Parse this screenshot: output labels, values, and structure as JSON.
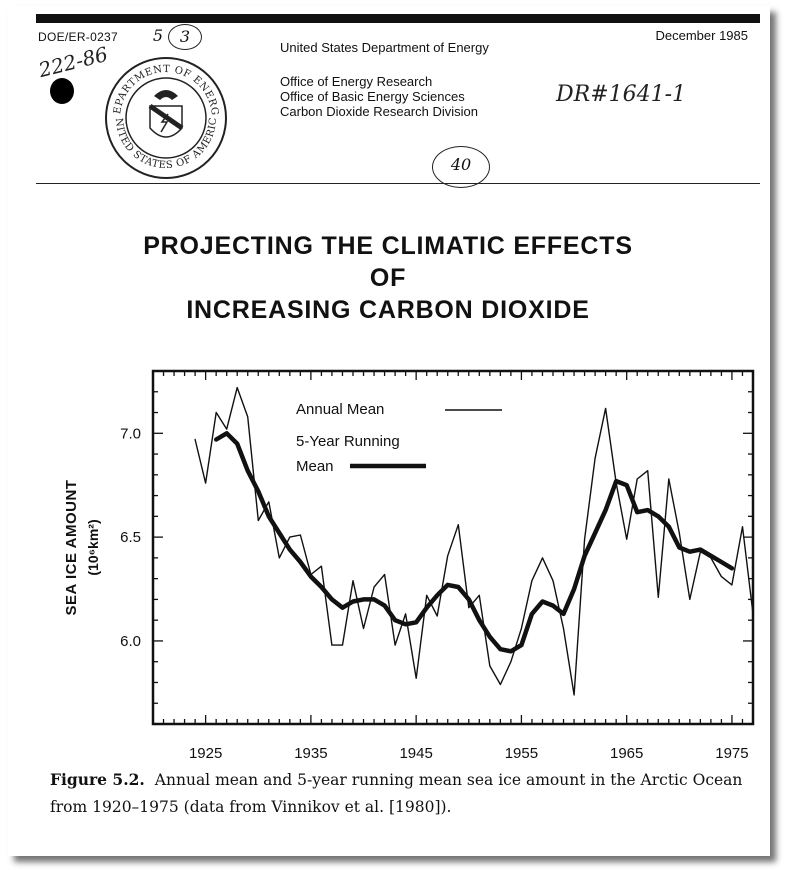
{
  "header": {
    "doc_number": "DOE/ER-0237",
    "handwritten_number": "222-86",
    "handwritten_mark": "5",
    "handwritten_circled": "3",
    "date": "December 1985",
    "department": "United States Department of Energy",
    "offices": [
      "Office of Energy Research",
      "Office of Basic Energy Sciences",
      "Carbon Dioxide Research Division"
    ],
    "handwritten_ref": "DR#1641-1",
    "handwritten_page": "40",
    "seal_text_top": "DEPARTMENT OF ENERGY",
    "seal_text_bottom": "UNITED STATES OF AMERICA"
  },
  "title_lines": [
    "PROJECTING THE CLIMATIC EFFECTS",
    "OF",
    "INCREASING CARBON DIOXIDE"
  ],
  "chart_data": {
    "type": "line",
    "title": "",
    "xlabel": "",
    "ylabel": "SEA ICE AMOUNT",
    "ylabel_unit": "(10⁶km²)",
    "xlim": [
      1920,
      1977
    ],
    "ylim": [
      5.6,
      7.3
    ],
    "x_ticks": [
      1925,
      1935,
      1945,
      1955,
      1965,
      1975
    ],
    "y_ticks": [
      6.0,
      6.5,
      7.0
    ],
    "y_tick_labels": [
      "6.0",
      "6.5",
      "7.0"
    ],
    "legend": [
      {
        "label": "Annual Mean",
        "style": "thin"
      },
      {
        "label": "5-Year Running",
        "label2": "Mean",
        "style": "thick"
      }
    ],
    "legend_position": "top-center",
    "series": [
      {
        "name": "Annual Mean",
        "x": [
          1924,
          1925,
          1926,
          1927,
          1928,
          1929,
          1930,
          1931,
          1932,
          1933,
          1934,
          1935,
          1936,
          1937,
          1938,
          1939,
          1940,
          1941,
          1942,
          1943,
          1944,
          1945,
          1946,
          1947,
          1948,
          1949,
          1950,
          1951,
          1952,
          1953,
          1954,
          1955,
          1956,
          1957,
          1958,
          1959,
          1960,
          1961,
          1962,
          1963,
          1964,
          1965,
          1966,
          1967,
          1968,
          1969,
          1970,
          1971,
          1972,
          1973,
          1974,
          1975,
          1976,
          1977
        ],
        "y": [
          6.97,
          6.76,
          7.1,
          7.02,
          7.22,
          7.08,
          6.58,
          6.67,
          6.4,
          6.5,
          6.51,
          6.32,
          6.36,
          5.98,
          5.98,
          6.29,
          6.06,
          6.26,
          6.32,
          5.98,
          6.13,
          5.82,
          6.22,
          6.12,
          6.41,
          6.56,
          6.16,
          6.22,
          5.88,
          5.79,
          5.9,
          6.06,
          6.29,
          6.4,
          6.29,
          6.06,
          5.74,
          6.49,
          6.88,
          7.12,
          6.76,
          6.49,
          6.78,
          6.82,
          6.21,
          6.78,
          6.52,
          6.2,
          6.43,
          6.4,
          6.31,
          6.27,
          6.55,
          6.13
        ]
      },
      {
        "name": "5-Year Running Mean",
        "x": [
          1926,
          1927,
          1928,
          1929,
          1930,
          1931,
          1932,
          1933,
          1934,
          1935,
          1936,
          1937,
          1938,
          1939,
          1940,
          1941,
          1942,
          1943,
          1944,
          1945,
          1946,
          1947,
          1948,
          1949,
          1950,
          1951,
          1952,
          1953,
          1954,
          1955,
          1956,
          1957,
          1958,
          1959,
          1960,
          1961,
          1962,
          1963,
          1964,
          1965,
          1966,
          1967,
          1968,
          1969,
          1970,
          1971,
          1972,
          1973,
          1974,
          1975
        ],
        "y": [
          6.97,
          7.0,
          6.95,
          6.82,
          6.72,
          6.6,
          6.52,
          6.44,
          6.38,
          6.31,
          6.26,
          6.2,
          6.16,
          6.19,
          6.2,
          6.2,
          6.17,
          6.1,
          6.08,
          6.09,
          6.16,
          6.22,
          6.27,
          6.26,
          6.2,
          6.1,
          6.02,
          5.96,
          5.95,
          5.98,
          6.13,
          6.19,
          6.17,
          6.13,
          6.25,
          6.41,
          6.52,
          6.63,
          6.77,
          6.75,
          6.62,
          6.63,
          6.6,
          6.55,
          6.45,
          6.43,
          6.44,
          6.41,
          6.38,
          6.35
        ]
      }
    ]
  },
  "caption": {
    "label": "Figure 5.2.",
    "text": "Annual mean and 5-year running mean sea ice amount in the Arctic Ocean from 1920–1975 (data from Vinnikov et al. [1980])."
  }
}
